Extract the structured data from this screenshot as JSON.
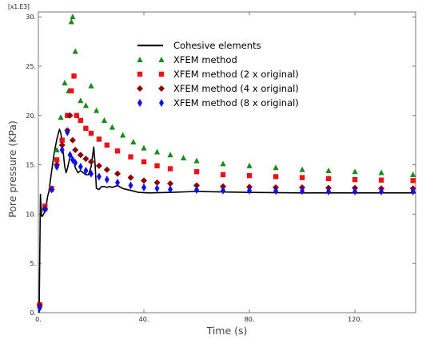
{
  "chart_data": {
    "type": "line",
    "title": "",
    "y_multiplier": "[x1.E3]",
    "xlabel": "Time (s)",
    "ylabel": "Pore pressure (KPa)",
    "xlim": [
      0,
      143
    ],
    "ylim": [
      0,
      30.5
    ],
    "xticks": [
      0,
      40,
      80,
      120
    ],
    "xtick_labels": [
      "0.",
      "40.",
      "80.",
      "120."
    ],
    "yticks": [
      0,
      5,
      10,
      15,
      20,
      25,
      30
    ],
    "ytick_labels": [
      "0.",
      "5.",
      "10.",
      "15.",
      "20.",
      "25.",
      "30."
    ],
    "grid": false,
    "legend_position": "top-center",
    "series": [
      {
        "name": "Cohesive elements",
        "style": "line",
        "color": "#000000",
        "x": [
          0.3,
          0.8,
          1.2,
          1.6,
          2.0,
          2.5,
          3.0,
          3.5,
          4.0,
          5.0,
          6.0,
          7.0,
          8.0,
          8.5,
          9.0,
          9.5,
          10.0,
          10.5,
          11.0,
          12.0,
          13.0,
          14.0,
          15.0,
          16.0,
          17.0,
          18.0,
          19.0,
          20.0,
          21.0,
          21.5,
          22.0,
          23.0,
          24.0,
          25.0,
          26.0,
          27.0,
          28.0,
          30.0,
          32.0,
          35.0,
          38.0,
          42.0,
          50.0,
          60.0,
          80.0,
          100.0,
          120.0,
          143.0
        ],
        "y": [
          0.0,
          12.0,
          9.8,
          9.8,
          10.0,
          10.3,
          10.9,
          11.8,
          12.3,
          14.3,
          16.2,
          17.6,
          18.6,
          18.2,
          17.3,
          16.0,
          14.8,
          14.2,
          14.6,
          15.8,
          15.8,
          14.7,
          14.2,
          14.4,
          14.2,
          14.0,
          14.0,
          14.8,
          16.8,
          15.0,
          12.6,
          12.5,
          12.8,
          12.8,
          12.7,
          12.8,
          12.7,
          12.9,
          12.6,
          12.4,
          12.2,
          12.15,
          12.2,
          12.3,
          12.2,
          12.15,
          12.15,
          12.15
        ]
      },
      {
        "name": "XFEM method",
        "style": "markers",
        "marker": "triangle",
        "color": "#1a8a1a",
        "x": [
          0.5,
          2.5,
          5.0,
          7.0,
          8.5,
          10.0,
          11.5,
          12.5,
          13.0,
          14.0,
          16.0,
          18.0,
          20.0,
          22.0,
          25.0,
          28.0,
          32.0,
          36.0,
          40.0,
          45.0,
          50.0,
          55.0,
          60.0,
          70.0,
          80.0,
          90.0,
          100.0,
          110.0,
          120.0,
          130.0,
          142.0
        ],
        "y": [
          0.8,
          10.5,
          12.5,
          16.5,
          19.8,
          23.3,
          22.5,
          29.5,
          30.0,
          26.5,
          21.5,
          21.0,
          23.0,
          20.5,
          19.5,
          18.8,
          18.0,
          17.3,
          16.7,
          16.3,
          16.0,
          15.7,
          15.4,
          15.1,
          14.9,
          14.7,
          14.5,
          14.4,
          14.3,
          14.2,
          14.0
        ]
      },
      {
        "name": "XFEM method (2 x original)",
        "style": "markers",
        "marker": "square",
        "color": "#e8141a",
        "x": [
          0.5,
          2.5,
          5.0,
          7.0,
          9.0,
          11.0,
          12.5,
          13.5,
          14.5,
          16.0,
          18.0,
          20.0,
          23.0,
          26.0,
          30.0,
          35.0,
          40.0,
          45.0,
          50.0,
          60.0,
          70.0,
          80.0,
          90.0,
          100.0,
          110.0,
          120.0,
          130.0,
          142.0
        ],
        "y": [
          0.8,
          10.8,
          12.6,
          15.5,
          17.5,
          20.0,
          22.5,
          24.0,
          20.0,
          19.5,
          18.7,
          18.2,
          17.6,
          17.0,
          16.4,
          15.8,
          15.3,
          14.9,
          14.6,
          14.3,
          14.0,
          13.9,
          13.8,
          13.7,
          13.6,
          13.5,
          13.45,
          13.4
        ]
      },
      {
        "name": "XFEM method (4 x original)",
        "style": "markers",
        "marker": "diamond",
        "color": "#8b0000",
        "x": [
          0.5,
          2.5,
          5.0,
          7.0,
          9.0,
          11.0,
          12.0,
          13.0,
          14.0,
          16.0,
          18.0,
          20.0,
          23.0,
          26.0,
          30.0,
          35.0,
          40.0,
          45.0,
          50.0,
          60.0,
          70.0,
          80.0,
          90.0,
          100.0,
          110.0,
          120.0,
          130.0,
          142.0
        ],
        "y": [
          0.8,
          10.5,
          12.5,
          15.0,
          17.0,
          18.5,
          20.0,
          17.5,
          16.5,
          16.0,
          15.6,
          15.3,
          14.9,
          14.5,
          14.1,
          13.7,
          13.4,
          13.2,
          13.1,
          12.9,
          12.8,
          12.75,
          12.7,
          12.7,
          12.65,
          12.65,
          12.6,
          12.6
        ]
      },
      {
        "name": "XFEM method (8 x original)",
        "style": "markers",
        "marker": "thin-diamond",
        "color": "#1010ee",
        "x": [
          0.5,
          2.5,
          5.0,
          7.0,
          9.0,
          11.0,
          12.0,
          13.0,
          14.0,
          16.0,
          18.0,
          20.0,
          23.0,
          26.0,
          30.0,
          35.0,
          40.0,
          45.0,
          50.0,
          60.0,
          70.0,
          80.0,
          90.0,
          100.0,
          110.0,
          120.0,
          130.0,
          142.0
        ],
        "y": [
          0.5,
          10.5,
          12.5,
          14.8,
          16.5,
          18.3,
          16.0,
          15.5,
          15.2,
          14.8,
          14.4,
          14.1,
          13.8,
          13.5,
          13.2,
          12.9,
          12.7,
          12.6,
          12.5,
          12.45,
          12.4,
          12.4,
          12.35,
          12.35,
          12.3,
          12.3,
          12.3,
          12.3
        ]
      }
    ]
  }
}
